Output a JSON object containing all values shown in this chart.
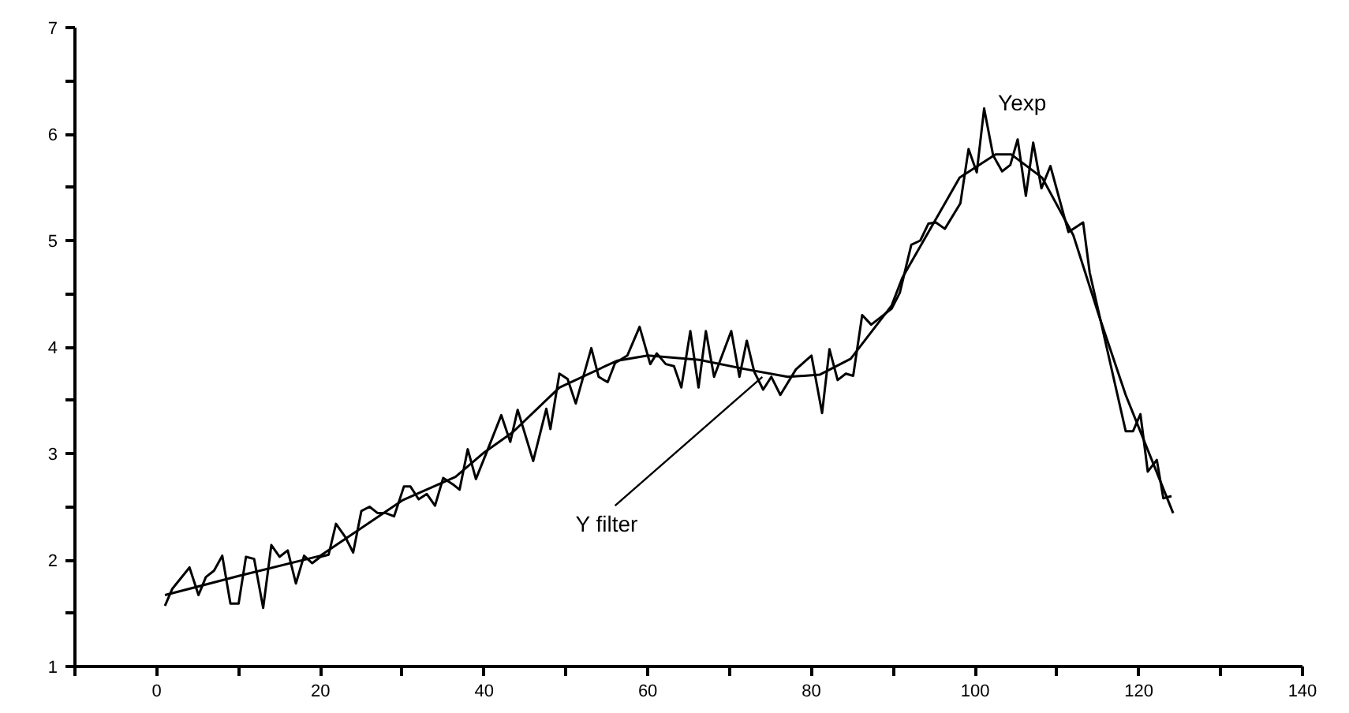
{
  "chart_data": {
    "type": "line",
    "xlim": [
      -10,
      140
    ],
    "ylim": [
      1,
      7
    ],
    "xticks": [
      {
        "value": -10,
        "label": null
      },
      0,
      {
        "value": 10,
        "label": null
      },
      20,
      {
        "value": 30,
        "label": null
      },
      40,
      {
        "value": 50,
        "label": null
      },
      60,
      {
        "value": 70,
        "label": null
      },
      80,
      {
        "value": 90,
        "label": null
      },
      100,
      {
        "value": 110,
        "label": null
      },
      120,
      {
        "value": 130,
        "label": null
      },
      140
    ],
    "yticks": [
      1,
      {
        "value": 1.5,
        "label": null
      },
      2,
      {
        "value": 2.5,
        "label": null
      },
      3,
      {
        "value": 3.5,
        "label": null
      },
      4,
      {
        "value": 4.5,
        "label": null
      },
      5,
      {
        "value": 5.5,
        "label": null
      },
      6,
      {
        "value": 6.5,
        "label": null
      },
      7
    ],
    "grid": false,
    "marker": "none",
    "line_style": "solid",
    "series": [
      {
        "color": "#000000",
        "x": [
          1,
          1.9,
          4,
          5.1,
          6,
          7,
          8,
          9,
          10,
          10.9,
          11.9,
          13,
          14,
          15,
          16,
          17,
          18,
          19,
          20,
          21,
          21.9,
          23,
          24,
          25,
          26,
          27,
          28,
          29,
          30.2,
          31,
          32,
          33,
          34,
          35,
          36.2,
          37,
          38,
          39,
          40.3,
          42.1,
          43.2,
          44.1,
          46,
          47.6,
          48.1,
          49.2,
          50.2,
          51.2,
          53.1,
          54,
          55.1,
          56,
          57.5,
          59,
          60.3,
          61.1,
          62.2,
          63.2,
          64.1,
          65.2,
          66.2,
          67.1,
          68.1,
          70.2,
          71.2,
          72.1,
          73,
          74.1,
          75.1,
          76.2,
          78.1,
          80,
          81.3,
          82.2,
          83.2,
          84.2,
          85.1,
          86.2,
          87.3,
          89.8,
          90.8,
          92.2,
          93.3,
          94.3,
          95.2,
          96.3,
          98.2,
          99.2,
          100.2,
          101.1,
          102.2,
          103.3,
          104.3,
          105.2,
          106.2,
          107.1,
          108.1,
          109.2,
          111.4,
          113.2,
          114,
          118.4,
          119.3,
          120.2,
          121.1,
          122.2,
          123,
          124
        ],
        "values": [
          1.57,
          1.73,
          1.93,
          1.67,
          1.84,
          1.9,
          2.04,
          1.59,
          1.59,
          2.03,
          2.01,
          1.55,
          2.14,
          2.03,
          2.09,
          1.78,
          2.04,
          1.97,
          2.03,
          2.05,
          2.34,
          2.22,
          2.07,
          2.46,
          2.5,
          2.44,
          2.44,
          2.41,
          2.69,
          2.69,
          2.57,
          2.62,
          2.51,
          2.77,
          2.71,
          2.66,
          3.04,
          2.76,
          3.01,
          3.36,
          3.11,
          3.41,
          2.93,
          3.42,
          3.23,
          3.75,
          3.7,
          3.47,
          3.99,
          3.72,
          3.67,
          3.85,
          3.92,
          4.19,
          3.84,
          3.94,
          3.84,
          3.82,
          3.62,
          4.15,
          3.62,
          4.15,
          3.72,
          4.15,
          3.72,
          4.06,
          3.77,
          3.6,
          3.72,
          3.55,
          3.79,
          3.92,
          3.38,
          3.98,
          3.69,
          3.75,
          3.73,
          4.3,
          4.21,
          4.36,
          4.51,
          4.96,
          5.0,
          5.16,
          5.17,
          5.11,
          5.35,
          5.86,
          5.64,
          6.24,
          5.8,
          5.65,
          5.71,
          5.95,
          5.42,
          5.92,
          5.49,
          5.7,
          5.08,
          5.17,
          4.7,
          3.21,
          3.21,
          3.37,
          2.83,
          2.94,
          2.58,
          2.6
        ]
      },
      {
        "color": "#000000",
        "x": [
          1,
          10,
          20,
          30,
          36.5,
          40,
          43.5,
          49.2,
          56.2,
          60,
          66.3,
          72.1,
          77.1,
          81,
          84.8,
          89.8,
          91.1,
          98.1,
          102.5,
          104.4,
          108.2,
          112,
          115.2,
          118.4,
          124.2
        ],
        "values": [
          1.67,
          1.85,
          2.04,
          2.56,
          2.78,
          3.01,
          3.2,
          3.62,
          3.87,
          3.92,
          3.88,
          3.79,
          3.72,
          3.74,
          3.89,
          4.39,
          4.65,
          5.59,
          5.81,
          5.81,
          5.59,
          5.05,
          4.28,
          3.55,
          2.44
        ]
      }
    ],
    "annotations": [
      {
        "text": "Yexp",
        "x": 101.1,
        "y": 6.24
      },
      {
        "text": "Y filter",
        "x": 74,
        "y": 3.72
      }
    ]
  }
}
